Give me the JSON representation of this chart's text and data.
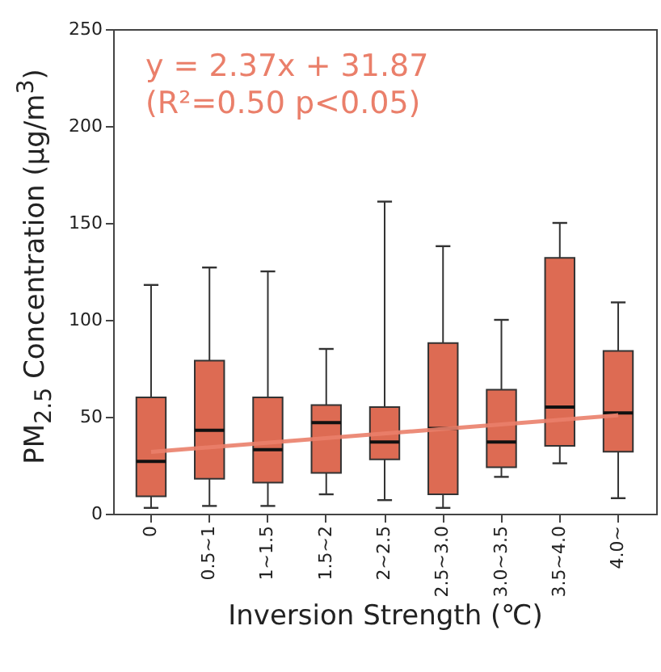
{
  "chart_data": {
    "type": "box",
    "xlabel": "Inversion Strength (℃)",
    "ylabel": "PM$_{2.5}$ Concentration (μg/m$^{3}$)",
    "categories": [
      "0",
      "0.5~1",
      "1~1.5",
      "1.5~2",
      "2~2.5",
      "2.5~3.0",
      "3.0~3.5",
      "3.5~4.0",
      "4.0~"
    ],
    "ylim": [
      0,
      250
    ],
    "yticks": [
      0,
      50,
      100,
      150,
      200,
      250
    ],
    "annotations": [
      "y = 2.37x + 31.87",
      "(R²=0.50 p<0.05)"
    ],
    "series": [
      {
        "color": "#dd6b53",
        "boxes": [
          {
            "low": 3,
            "q1": 9,
            "median": 27,
            "q3": 60,
            "high": 118
          },
          {
            "low": 4,
            "q1": 18,
            "median": 43,
            "q3": 79,
            "high": 127
          },
          {
            "low": 4,
            "q1": 16,
            "median": 33,
            "q3": 60,
            "high": 125
          },
          {
            "low": 10,
            "q1": 21,
            "median": 47,
            "q3": 56,
            "high": 85
          },
          {
            "low": 7,
            "q1": 28,
            "median": 37,
            "q3": 55,
            "high": 161
          },
          {
            "low": 3,
            "q1": 10,
            "median": 44,
            "q3": 88,
            "high": 138
          },
          {
            "low": 19,
            "q1": 24,
            "median": 37,
            "q3": 64,
            "high": 100
          },
          {
            "low": 26,
            "q1": 35,
            "median": 55,
            "q3": 132,
            "high": 150
          },
          {
            "low": 8,
            "q1": 32,
            "median": 52,
            "q3": 84,
            "high": 109
          }
        ]
      },
      {
        "type": "line",
        "color": "#ea7f6a",
        "x": [
          "0",
          "4.0~"
        ],
        "values": [
          31.9,
          50.8
        ]
      }
    ]
  }
}
